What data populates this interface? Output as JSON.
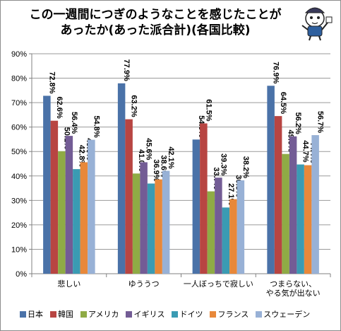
{
  "title_line1": "この一週間につぎのようなことを感じたことが",
  "title_line2": "あったか(あった派合計)(各国比較)",
  "chart_data": {
    "type": "bar",
    "title": "この一週間につぎのようなことを感じたことがあったか(あった派合計)(各国比較)",
    "categories": [
      "悲しい",
      "ゆううつ",
      "一人ぼっちで寂しい",
      "つまらない、\nやる気が出ない"
    ],
    "series": [
      {
        "name": "日本",
        "color": "#4a72a8",
        "values": [
          72.8,
          77.9,
          54.9,
          76.9
        ]
      },
      {
        "name": "韓国",
        "color": "#b84542",
        "values": [
          62.6,
          63.2,
          61.5,
          64.5
        ]
      },
      {
        "name": "アメリカ",
        "color": "#8fab45",
        "values": [
          50.1,
          41.0,
          33.7,
          49.0
        ]
      },
      {
        "name": "イギリス",
        "color": "#735c95",
        "values": [
          56.4,
          45.6,
          39.3,
          56.2
        ]
      },
      {
        "name": "ドイツ",
        "color": "#3a9bb3",
        "values": [
          42.8,
          36.9,
          27.1,
          44.7
        ]
      },
      {
        "name": "フランス",
        "color": "#e8883a",
        "values": [
          45.6,
          38.6,
          30.5,
          44.4
        ]
      },
      {
        "name": "スウェーデン",
        "color": "#98b1d6",
        "values": [
          54.8,
          42.1,
          38.2,
          56.7
        ]
      }
    ],
    "ylim": [
      0,
      90
    ],
    "yticks": [
      0,
      10,
      20,
      30,
      40,
      50,
      60,
      70,
      80,
      90
    ],
    "tick_suffix": "%",
    "grid": true,
    "legend_position": "bottom"
  }
}
